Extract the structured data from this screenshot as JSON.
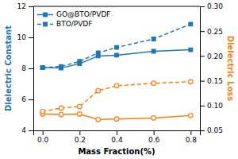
{
  "chart_data": {
    "type": "line",
    "x": [
      0.0,
      0.1,
      0.2,
      0.3,
      0.4,
      0.6,
      0.8
    ],
    "xlabel": "Mass Fraction(%)",
    "ylabel": "Dielectric Constant",
    "y2label": "Dielectric Loss",
    "xlim": [
      -0.05,
      0.85
    ],
    "xticks": [
      {
        "value": 0.0,
        "label": "0.0"
      },
      0.2,
      0.4,
      0.6,
      0.8
    ],
    "ylim": [
      4,
      12
    ],
    "yticks": [
      4,
      6,
      8,
      10,
      12
    ],
    "y2lim": [
      0.05,
      0.3
    ],
    "y2ticks": [
      0.05,
      {
        "value": 0.1,
        "label": "0.10"
      },
      0.15,
      {
        "value": 0.2,
        "label": "0.20"
      },
      0.25,
      {
        "value": 0.3,
        "label": "0.30"
      }
    ],
    "grid": false,
    "legend": "upper left",
    "series": [
      {
        "name": "GO@BTO/PVDF",
        "values": [
          8.05,
          8.02,
          8.3,
          8.8,
          8.85,
          9.1,
          9.2
        ],
        "line_style": "solid",
        "marker": "square"
      },
      {
        "name": "BTO/PVDF",
        "values": [
          8.05,
          8.12,
          8.45,
          9.0,
          9.35,
          9.9,
          10.85
        ],
        "line_style": "dashed",
        "marker": "square"
      },
      {
        "values": [
          0.083,
          0.082,
          0.083,
          0.072,
          0.073,
          0.075,
          0.08
        ],
        "axis": "y2",
        "line_style": "solid",
        "marker": "circle-open"
      },
      {
        "values": [
          0.088,
          0.095,
          0.098,
          0.13,
          0.14,
          0.145,
          0.148
        ],
        "axis": "y2",
        "line_style": "dashed",
        "marker": "circle-open"
      }
    ]
  }
}
